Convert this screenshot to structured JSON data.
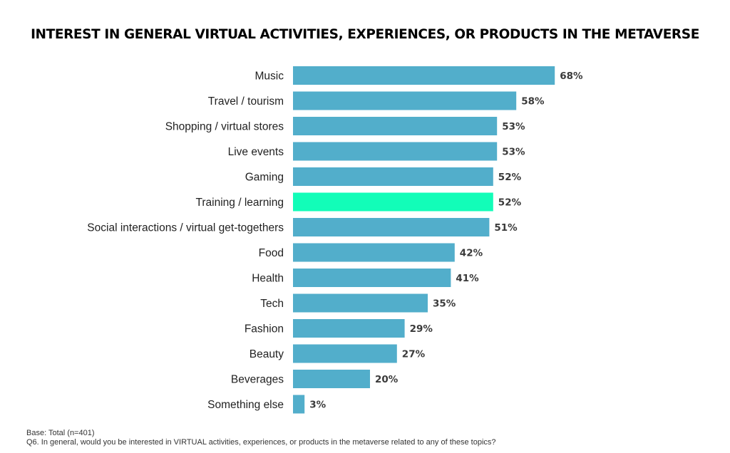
{
  "chart_data": {
    "type": "bar",
    "orientation": "horizontal",
    "title": "INTEREST IN GENERAL VIRTUAL ACTIVITIES, EXPERIENCES, OR PRODUCTS IN THE METAVERSE",
    "categories": [
      "Music",
      "Travel / tourism",
      "Shopping / virtual stores",
      "Live events",
      "Gaming",
      "Training / learning",
      "Social interactions / virtual get-togethers",
      "Food",
      "Health",
      "Tech",
      "Fashion",
      "Beauty",
      "Beverages",
      "Something else"
    ],
    "values": [
      68,
      58,
      53,
      53,
      52,
      52,
      51,
      42,
      41,
      35,
      29,
      27,
      20,
      3
    ],
    "value_labels": [
      "68%",
      "58%",
      "53%",
      "53%",
      "52%",
      "52%",
      "51%",
      "42%",
      "41%",
      "35%",
      "29%",
      "27%",
      "20%",
      "3%"
    ],
    "unit": "%",
    "colors": {
      "bar": "#52AECB",
      "highlight": "#12FDB8"
    },
    "highlight_category": "Training / learning",
    "grid": false,
    "legend": "none"
  },
  "footnotes": {
    "base": "Base: Total (n=401)",
    "question": "Q6. In general, would you be interested in VIRTUAL activities, experiences, or products in the metaverse related to any of these topics?"
  }
}
